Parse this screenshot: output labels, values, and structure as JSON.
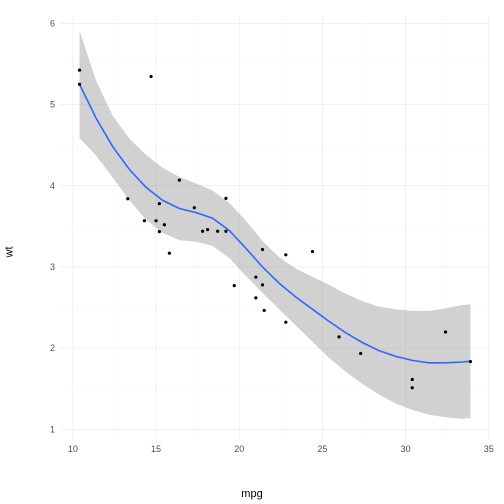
{
  "chart": {
    "type": "scatter-smooth",
    "xlabel": "mpg",
    "ylabel": "wt",
    "label_fontsize": 11,
    "tick_fontsize": 9,
    "background_color": "#ffffff",
    "panel_background": "#ffffff",
    "grid_major_color": "#ebebeb",
    "grid_minor_color": "#f5f5f5",
    "point_color": "#000000",
    "point_radius": 1.6,
    "line_color": "#3366ff",
    "line_width": 1.6,
    "ribbon_color": "#999999",
    "ribbon_opacity": 0.45,
    "xlim": [
      9.225,
      35.075
    ],
    "ylim": [
      0.8694,
      6.0906
    ],
    "x_ticks": [
      10,
      15,
      20,
      25,
      30,
      35
    ],
    "y_ticks": [
      1,
      2,
      3,
      4,
      5,
      6
    ],
    "x_minor": [
      12.5,
      17.5,
      22.5,
      27.5,
      32.5
    ],
    "y_minor": [
      1.5,
      2.5,
      3.5,
      4.5,
      5.5
    ],
    "points": [
      {
        "x": 21.0,
        "y": 2.62
      },
      {
        "x": 21.0,
        "y": 2.875
      },
      {
        "x": 22.8,
        "y": 2.32
      },
      {
        "x": 21.4,
        "y": 3.215
      },
      {
        "x": 18.7,
        "y": 3.44
      },
      {
        "x": 18.1,
        "y": 3.46
      },
      {
        "x": 14.3,
        "y": 3.57
      },
      {
        "x": 24.4,
        "y": 3.19
      },
      {
        "x": 22.8,
        "y": 3.15
      },
      {
        "x": 19.2,
        "y": 3.44
      },
      {
        "x": 17.8,
        "y": 3.44
      },
      {
        "x": 16.4,
        "y": 4.07
      },
      {
        "x": 17.3,
        "y": 3.73
      },
      {
        "x": 15.2,
        "y": 3.78
      },
      {
        "x": 10.4,
        "y": 5.25
      },
      {
        "x": 10.4,
        "y": 5.424
      },
      {
        "x": 14.7,
        "y": 5.345
      },
      {
        "x": 32.4,
        "y": 2.2
      },
      {
        "x": 30.4,
        "y": 1.615
      },
      {
        "x": 33.9,
        "y": 1.835
      },
      {
        "x": 21.5,
        "y": 2.465
      },
      {
        "x": 15.5,
        "y": 3.52
      },
      {
        "x": 15.2,
        "y": 3.435
      },
      {
        "x": 13.3,
        "y": 3.84
      },
      {
        "x": 19.2,
        "y": 3.845
      },
      {
        "x": 27.3,
        "y": 1.935
      },
      {
        "x": 26.0,
        "y": 2.14
      },
      {
        "x": 30.4,
        "y": 1.513
      },
      {
        "x": 15.8,
        "y": 3.17
      },
      {
        "x": 19.7,
        "y": 2.77
      },
      {
        "x": 15.0,
        "y": 3.57
      },
      {
        "x": 21.4,
        "y": 2.78
      }
    ],
    "smooth": {
      "x": [
        10.4,
        11.4,
        12.4,
        13.4,
        14.4,
        15.4,
        16.4,
        17.4,
        18.4,
        19.4,
        20.4,
        21.4,
        22.4,
        23.4,
        24.4,
        25.4,
        26.4,
        27.4,
        28.4,
        29.4,
        30.4,
        31.4,
        32.4,
        33.4,
        33.9
      ],
      "y": [
        5.25,
        4.83,
        4.48,
        4.2,
        3.98,
        3.82,
        3.72,
        3.67,
        3.6,
        3.45,
        3.23,
        3.0,
        2.8,
        2.63,
        2.48,
        2.33,
        2.19,
        2.07,
        1.97,
        1.9,
        1.85,
        1.82,
        1.82,
        1.83,
        1.84
      ],
      "lo": [
        4.59,
        4.37,
        4.1,
        3.82,
        3.58,
        3.42,
        3.33,
        3.31,
        3.26,
        3.11,
        2.89,
        2.68,
        2.48,
        2.28,
        2.08,
        1.88,
        1.71,
        1.56,
        1.43,
        1.32,
        1.24,
        1.18,
        1.15,
        1.13,
        1.14
      ],
      "hi": [
        5.91,
        5.29,
        4.86,
        4.58,
        4.38,
        4.22,
        4.11,
        4.03,
        3.94,
        3.79,
        3.57,
        3.32,
        3.12,
        2.98,
        2.88,
        2.78,
        2.67,
        2.58,
        2.51,
        2.48,
        2.46,
        2.46,
        2.49,
        2.53,
        2.54
      ]
    }
  }
}
